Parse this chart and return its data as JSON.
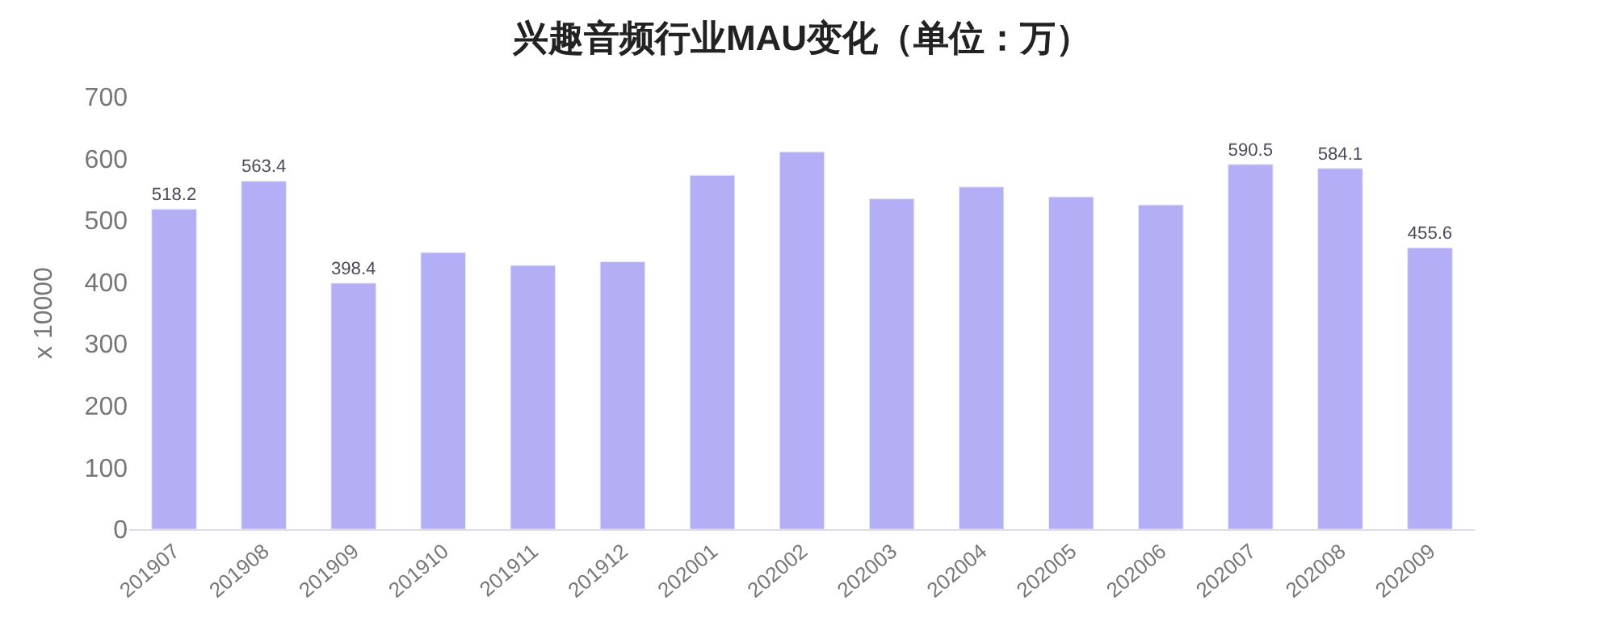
{
  "chart_data": {
    "type": "bar",
    "title": "兴趣音频行业MAU变化（单位：万）",
    "ylabel": "x 10000",
    "categories": [
      "201907",
      "201908",
      "201909",
      "201910",
      "201911",
      "201912",
      "202001",
      "202002",
      "202003",
      "202004",
      "202005",
      "202006",
      "202007",
      "202008",
      "202009"
    ],
    "values": [
      518.2,
      563.4,
      398.4,
      448,
      427,
      433,
      573,
      611,
      535,
      554,
      538,
      525,
      590.5,
      584.1,
      455.6
    ],
    "value_labels": [
      "518.2",
      "563.4",
      "398.4",
      null,
      null,
      null,
      null,
      null,
      null,
      null,
      null,
      null,
      "590.5",
      "584.1",
      "455.6"
    ],
    "color": "#b3aef5",
    "ylim": [
      0,
      700
    ],
    "yticks": [
      0,
      100,
      200,
      300,
      400,
      500,
      600,
      700
    ]
  }
}
